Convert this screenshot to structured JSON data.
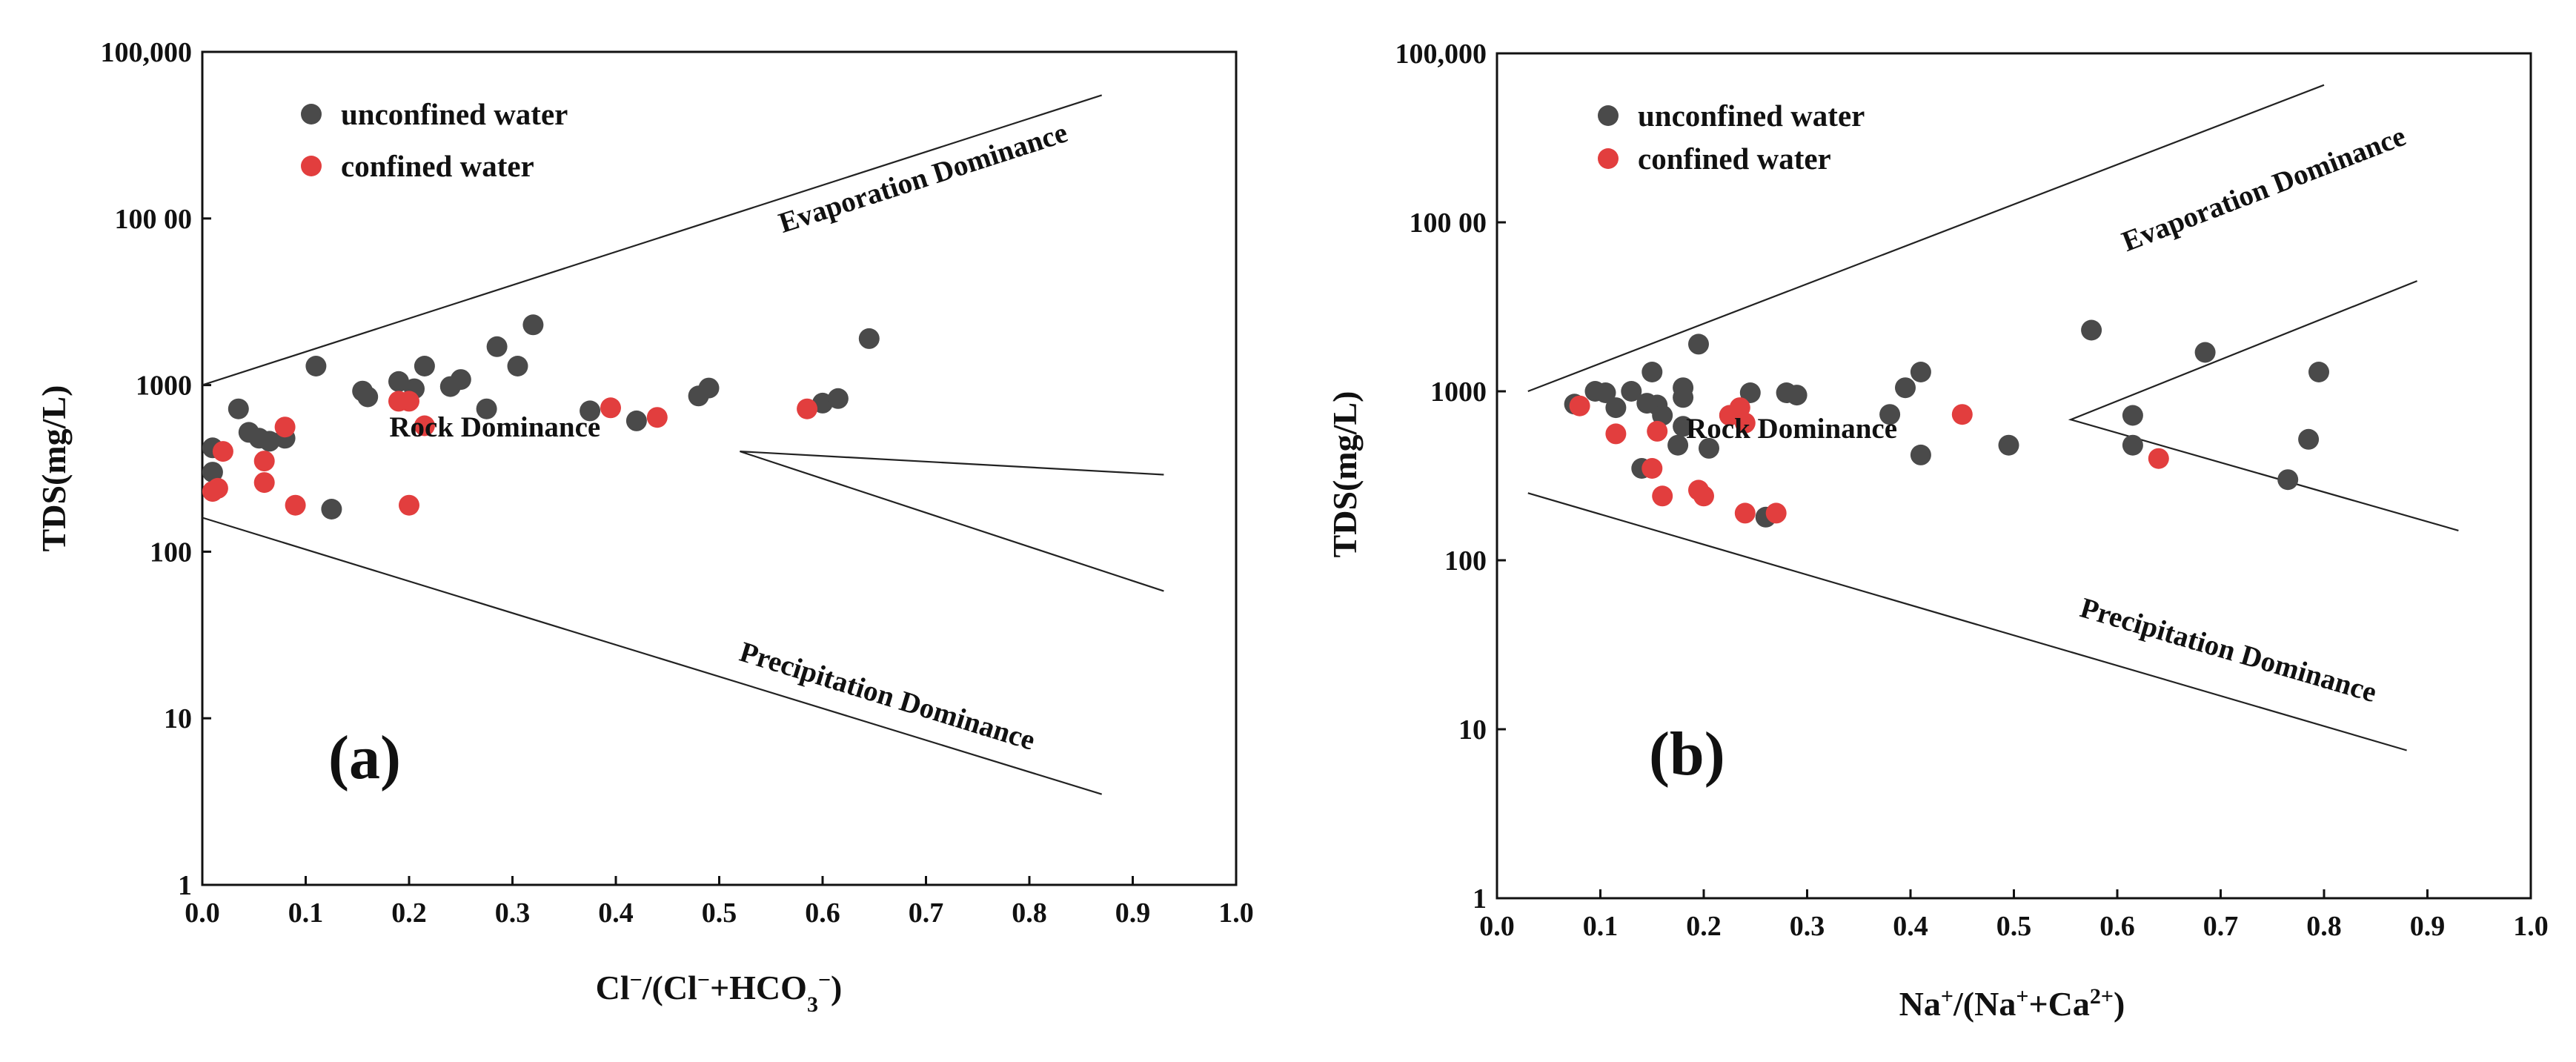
{
  "colors": {
    "unconfined": "#4a4a4a",
    "confined": "#e23e3e",
    "axis": "#111111",
    "line": "#222222"
  },
  "chart_data": [
    {
      "type": "scatter",
      "panel": "(a)",
      "xlabel": "Cl⁻/(Cl⁻+HCO₃⁻)",
      "xlabel_parts": {
        "base1": "Cl",
        "sup1": "−",
        "base2": "/(Cl",
        "sup2": "−",
        "base3": "+HCO",
        "sub3": "3",
        "sup3": "−",
        "base4": ")"
      },
      "ylabel": "TDS(mg/L)",
      "xlim": [
        0,
        1.0
      ],
      "ylim": [
        1,
        100000
      ],
      "yscale": "log",
      "x_ticks": [
        0,
        0.1,
        0.2,
        0.3,
        0.4,
        0.5,
        0.6,
        0.7,
        0.8,
        0.9,
        1.0
      ],
      "x_tick_labels": [
        "0.0",
        "0.1",
        "0.2",
        "0.3",
        "0.4",
        "0.5",
        "0.6",
        "0.7",
        "0.8",
        "0.9",
        "1.0"
      ],
      "y_ticks": [
        1,
        10,
        100,
        1000,
        10000,
        100000
      ],
      "y_tick_labels": [
        "1",
        "10",
        "100",
        "1000",
        "100 00",
        "100,000"
      ],
      "legend": {
        "placement": "top-left",
        "entries": [
          "unconfined water",
          "confined water"
        ]
      },
      "regions": [
        {
          "label": "Evaporation Dominance",
          "x": 0.7,
          "y": 15500,
          "angle_ref": [
            [
              0.0,
              1000
            ],
            [
              0.87,
              55000
            ]
          ]
        },
        {
          "label": "Rock Dominance",
          "x": 0.283,
          "y": 490,
          "angle_ref": null
        },
        {
          "label": "Precipitation Dominance",
          "x": 0.66,
          "y": 12,
          "angle_ref": [
            [
              0.0,
              160
            ],
            [
              0.87,
              3.5
            ]
          ]
        }
      ],
      "boundaries": [
        [
          [
            0.0,
            1000
          ],
          [
            0.87,
            55000
          ]
        ],
        [
          [
            0.0,
            160
          ],
          [
            0.87,
            3.5
          ]
        ],
        [
          [
            0.93,
            290
          ],
          [
            0.52,
            400
          ],
          [
            0.93,
            58
          ]
        ]
      ],
      "series": [
        {
          "name": "unconfined water",
          "color_key": "unconfined",
          "points": [
            [
              0.01,
              300
            ],
            [
              0.01,
              420
            ],
            [
              0.035,
              720
            ],
            [
              0.045,
              520
            ],
            [
              0.055,
              480
            ],
            [
              0.065,
              460
            ],
            [
              0.08,
              480
            ],
            [
              0.11,
              1300
            ],
            [
              0.125,
              180
            ],
            [
              0.155,
              920
            ],
            [
              0.16,
              850
            ],
            [
              0.19,
              1050
            ],
            [
              0.205,
              950
            ],
            [
              0.215,
              1300
            ],
            [
              0.24,
              980
            ],
            [
              0.25,
              1080
            ],
            [
              0.275,
              720
            ],
            [
              0.285,
              1700
            ],
            [
              0.305,
              1300
            ],
            [
              0.32,
              2300
            ],
            [
              0.375,
              700
            ],
            [
              0.42,
              610
            ],
            [
              0.48,
              860
            ],
            [
              0.49,
              960
            ],
            [
              0.6,
              780
            ],
            [
              0.615,
              830
            ],
            [
              0.645,
              1900
            ]
          ]
        },
        {
          "name": "confined water",
          "color_key": "confined",
          "points": [
            [
              0.01,
              230
            ],
            [
              0.015,
              240
            ],
            [
              0.02,
              400
            ],
            [
              0.06,
              350
            ],
            [
              0.06,
              260
            ],
            [
              0.08,
              560
            ],
            [
              0.09,
              190
            ],
            [
              0.19,
              800
            ],
            [
              0.2,
              800
            ],
            [
              0.2,
              190
            ],
            [
              0.215,
              570
            ],
            [
              0.395,
              730
            ],
            [
              0.44,
              640
            ],
            [
              0.585,
              720
            ]
          ]
        }
      ]
    },
    {
      "type": "scatter",
      "panel": "(b)",
      "xlabel": "Na⁺/(Na⁺+Ca²⁺)",
      "xlabel_parts": {
        "base1": "Na",
        "sup1": "+",
        "base2": "/(Na",
        "sup2": "+",
        "base3": "+Ca",
        "sup3": "2+",
        "base4": ")"
      },
      "ylabel": "TDS(mg/L)",
      "xlim": [
        0,
        1.0
      ],
      "ylim": [
        1,
        100000
      ],
      "yscale": "log",
      "x_ticks": [
        0,
        0.1,
        0.2,
        0.3,
        0.4,
        0.5,
        0.6,
        0.7,
        0.8,
        0.9,
        1.0
      ],
      "x_tick_labels": [
        "0.0",
        "0.1",
        "0.2",
        "0.3",
        "0.4",
        "0.5",
        "0.6",
        "0.7",
        "0.8",
        "0.9",
        "1.0"
      ],
      "y_ticks": [
        1,
        10,
        100,
        1000,
        10000,
        100000
      ],
      "y_tick_labels": [
        "1",
        "10",
        "100",
        "1000",
        "100 00",
        "100,000"
      ],
      "legend": {
        "placement": "top-left",
        "entries": [
          "unconfined water",
          "confined water"
        ]
      },
      "regions": [
        {
          "label": "Evaporation Dominance",
          "x": 0.745,
          "y": 14000,
          "angle_ref": [
            [
              0.03,
              1000
            ],
            [
              0.8,
              65000
            ]
          ]
        },
        {
          "label": "Rock Dominance",
          "x": 0.285,
          "y": 530,
          "angle_ref": null
        },
        {
          "label": "Precipitation Dominance",
          "x": 0.705,
          "y": 26,
          "angle_ref": [
            [
              0.03,
              250
            ],
            [
              0.88,
              7.5
            ]
          ]
        }
      ],
      "boundaries": [
        [
          [
            0.03,
            1000
          ],
          [
            0.8,
            65000
          ]
        ],
        [
          [
            0.03,
            250
          ],
          [
            0.88,
            7.5
          ]
        ],
        [
          [
            0.89,
            4500
          ],
          [
            0.555,
            680
          ],
          [
            0.93,
            150
          ]
        ]
      ],
      "series": [
        {
          "name": "unconfined water",
          "color_key": "unconfined",
          "points": [
            [
              0.075,
              840
            ],
            [
              0.095,
              1000
            ],
            [
              0.105,
              980
            ],
            [
              0.115,
              800
            ],
            [
              0.13,
              1000
            ],
            [
              0.14,
              350
            ],
            [
              0.145,
              850
            ],
            [
              0.15,
              1300
            ],
            [
              0.155,
              830
            ],
            [
              0.16,
              720
            ],
            [
              0.175,
              480
            ],
            [
              0.18,
              1050
            ],
            [
              0.18,
              920
            ],
            [
              0.18,
              620
            ],
            [
              0.195,
              1900
            ],
            [
              0.205,
              460
            ],
            [
              0.225,
              720
            ],
            [
              0.245,
              980
            ],
            [
              0.26,
              180
            ],
            [
              0.28,
              980
            ],
            [
              0.29,
              950
            ],
            [
              0.38,
              730
            ],
            [
              0.395,
              1050
            ],
            [
              0.41,
              1300
            ],
            [
              0.41,
              420
            ],
            [
              0.495,
              480
            ],
            [
              0.575,
              2300
            ],
            [
              0.615,
              720
            ],
            [
              0.615,
              480
            ],
            [
              0.685,
              1700
            ],
            [
              0.765,
              300
            ],
            [
              0.785,
              520
            ],
            [
              0.795,
              1300
            ]
          ]
        },
        {
          "name": "confined water",
          "color_key": "confined",
          "points": [
            [
              0.08,
              820
            ],
            [
              0.115,
              560
            ],
            [
              0.15,
              350
            ],
            [
              0.155,
              580
            ],
            [
              0.16,
              240
            ],
            [
              0.195,
              260
            ],
            [
              0.2,
              240
            ],
            [
              0.225,
              720
            ],
            [
              0.235,
              800
            ],
            [
              0.24,
              650
            ],
            [
              0.24,
              190
            ],
            [
              0.27,
              190
            ],
            [
              0.45,
              730
            ],
            [
              0.64,
              400
            ]
          ]
        }
      ]
    }
  ]
}
